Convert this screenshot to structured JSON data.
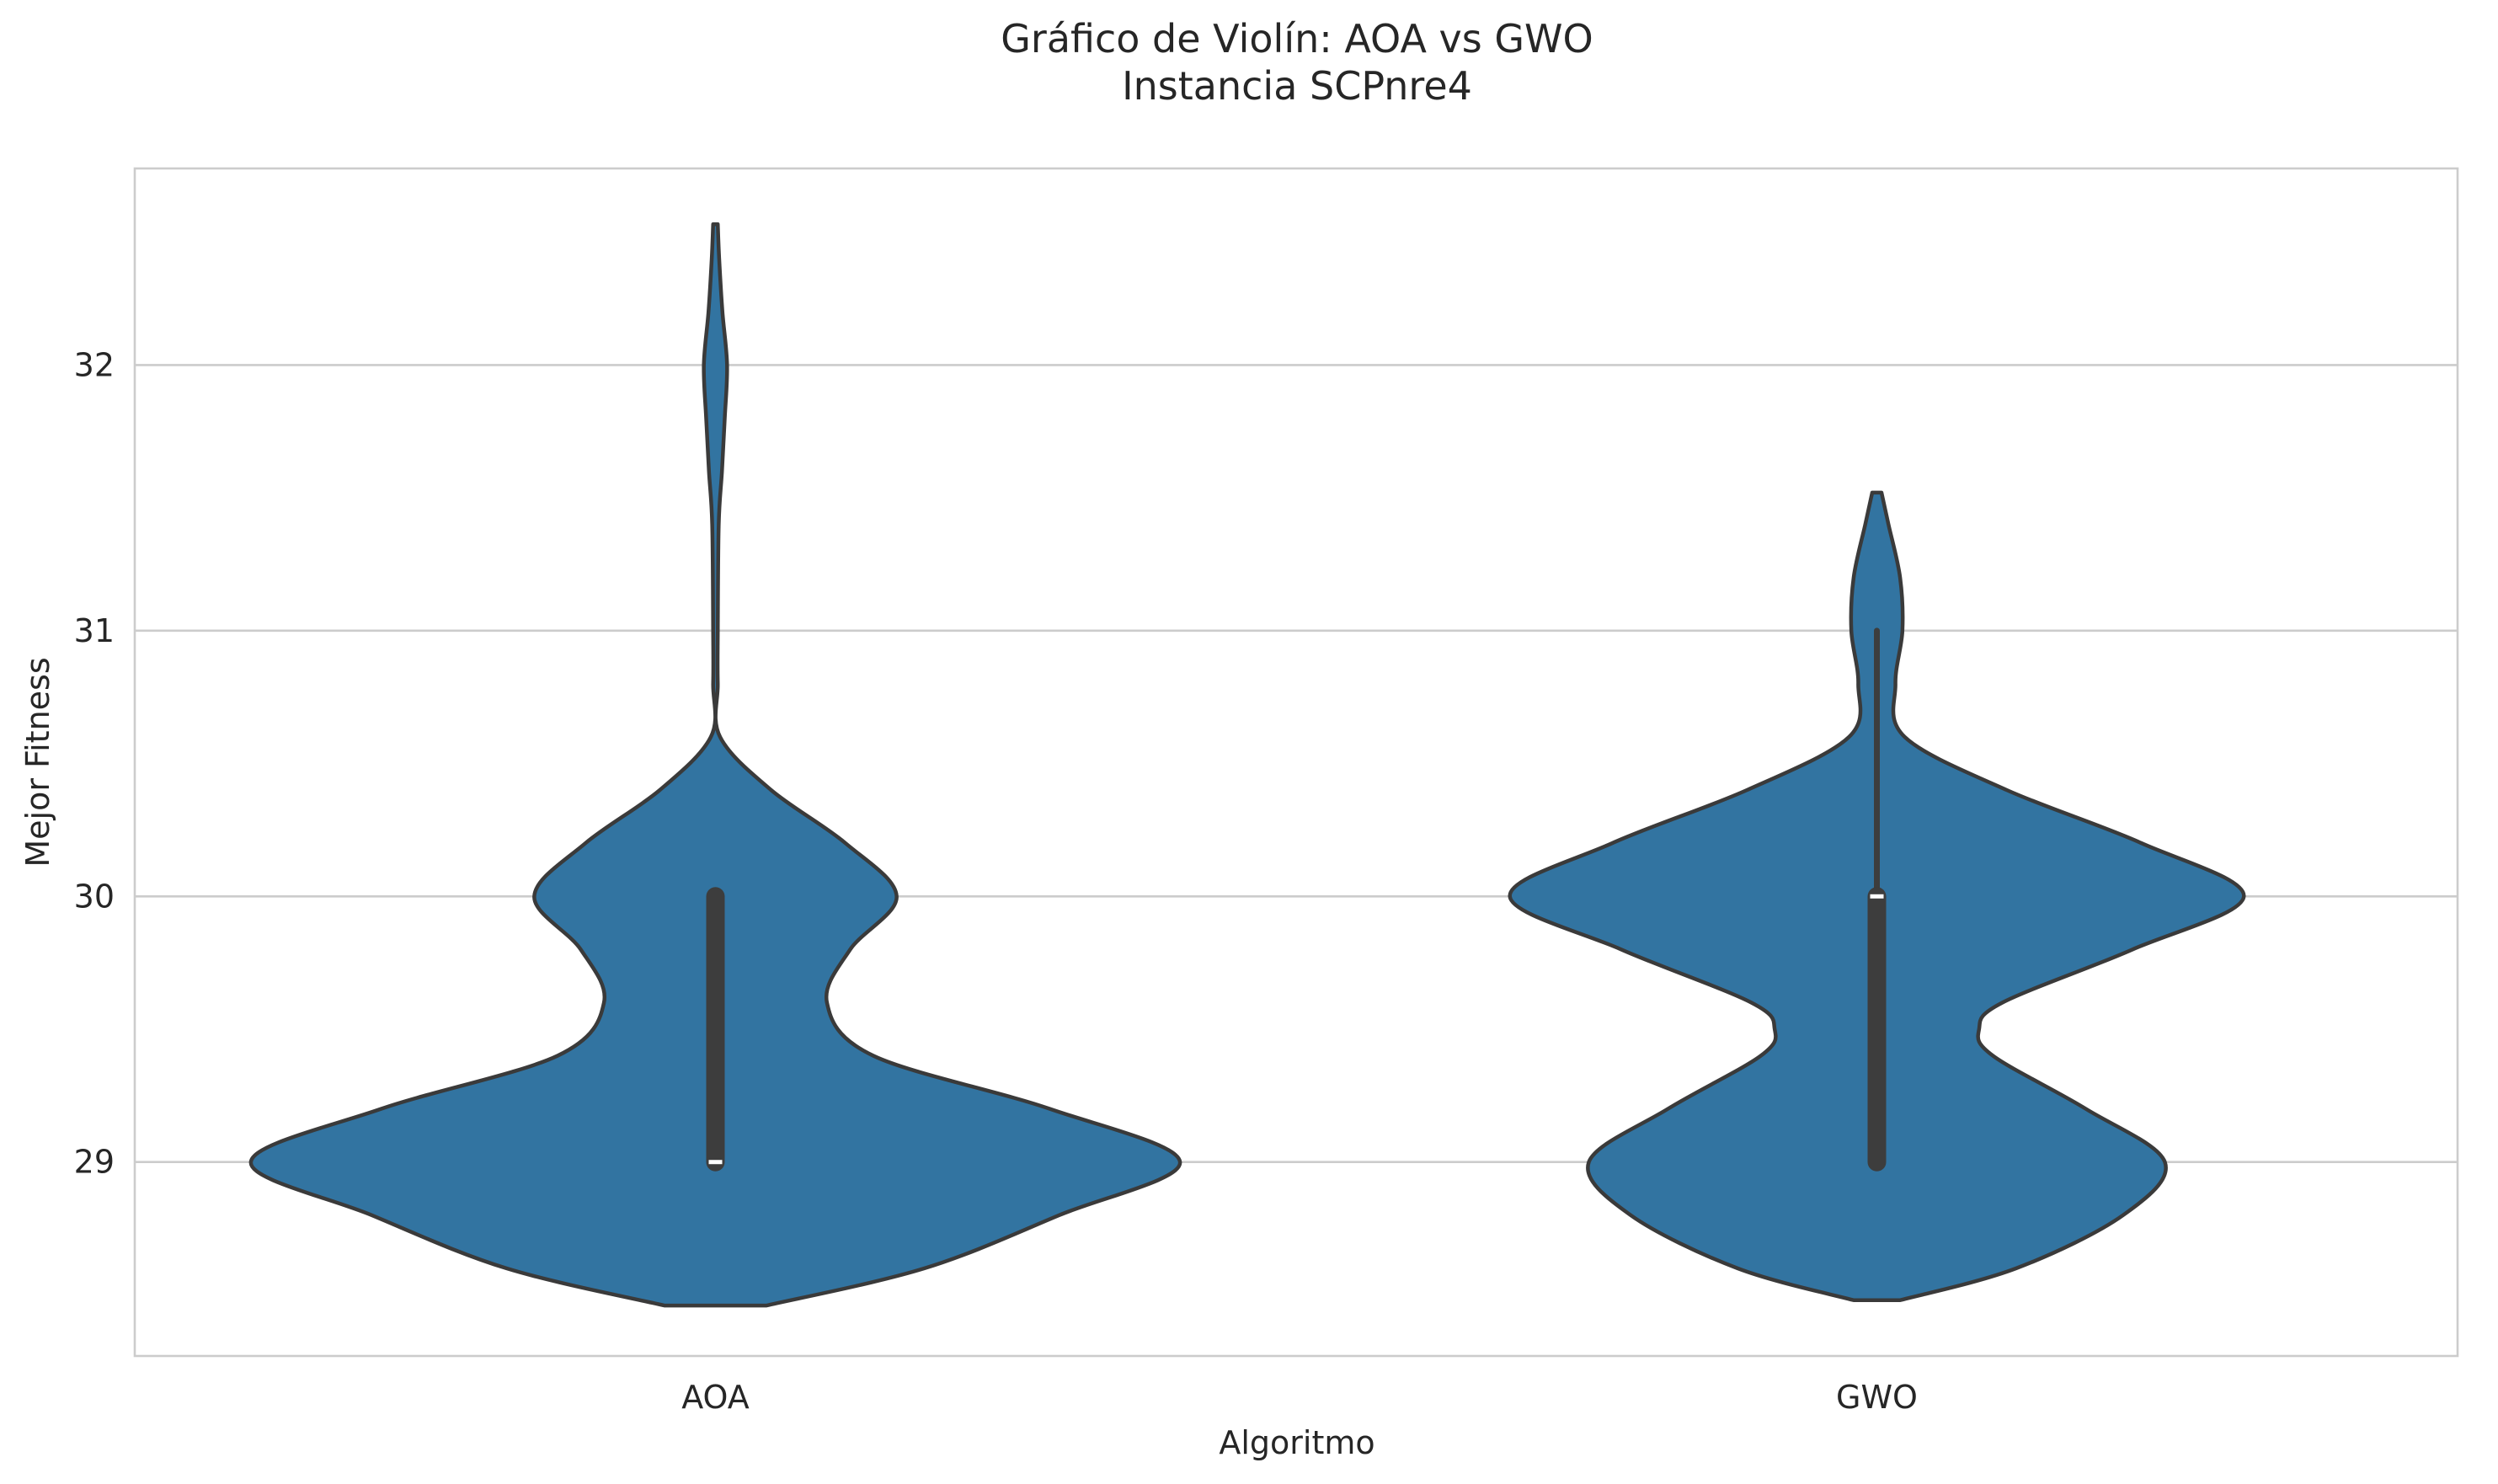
{
  "chart_data": {
    "type": "violin",
    "title_line1": "Gráfico de Violín: AOA vs GWO",
    "title_line2": "Instancia SCPnre4",
    "xlabel": "Algoritmo",
    "ylabel": "Mejor Fitness",
    "categories": [
      "AOA",
      "GWO"
    ],
    "ylim": [
      28.27,
      32.74
    ],
    "yticks": [
      "29",
      "30",
      "31",
      "32"
    ],
    "grid": "horizontal",
    "color": "#3274a1",
    "series": [
      {
        "category": "AOA",
        "box": {
          "q1": 29.0,
          "median": 29.0,
          "q3": 30.0,
          "whisker_low": 29.0,
          "whisker_high": 30.0
        },
        "density": [
          [
            28.46,
            0.11
          ],
          [
            28.6,
            0.45
          ],
          [
            28.8,
            0.74
          ],
          [
            29.0,
            1.0
          ],
          [
            29.2,
            0.72
          ],
          [
            29.4,
            0.34
          ],
          [
            29.6,
            0.24
          ],
          [
            29.8,
            0.29
          ],
          [
            30.0,
            0.39
          ],
          [
            30.2,
            0.28
          ],
          [
            30.4,
            0.12
          ],
          [
            30.6,
            0.01
          ],
          [
            30.8,
            0.005
          ],
          [
            31.0,
            0.005
          ],
          [
            31.4,
            0.007
          ],
          [
            31.6,
            0.014
          ],
          [
            31.8,
            0.02
          ],
          [
            32.0,
            0.025
          ],
          [
            32.2,
            0.015
          ],
          [
            32.4,
            0.008
          ],
          [
            32.53,
            0.005
          ]
        ]
      },
      {
        "category": "GWO",
        "box": {
          "q1": 29.0,
          "median": 30.0,
          "q3": 30.0,
          "whisker_low": 29.0,
          "whisker_high": 31.0
        },
        "density": [
          [
            28.48,
            0.05
          ],
          [
            28.6,
            0.3
          ],
          [
            28.8,
            0.53
          ],
          [
            29.0,
            0.62
          ],
          [
            29.2,
            0.45
          ],
          [
            29.4,
            0.25
          ],
          [
            29.5,
            0.22
          ],
          [
            29.6,
            0.27
          ],
          [
            29.8,
            0.55
          ],
          [
            30.0,
            0.79
          ],
          [
            30.2,
            0.57
          ],
          [
            30.4,
            0.28
          ],
          [
            30.6,
            0.06
          ],
          [
            30.8,
            0.04
          ],
          [
            31.0,
            0.055
          ],
          [
            31.2,
            0.05
          ],
          [
            31.4,
            0.025
          ],
          [
            31.52,
            0.01
          ]
        ]
      }
    ]
  }
}
